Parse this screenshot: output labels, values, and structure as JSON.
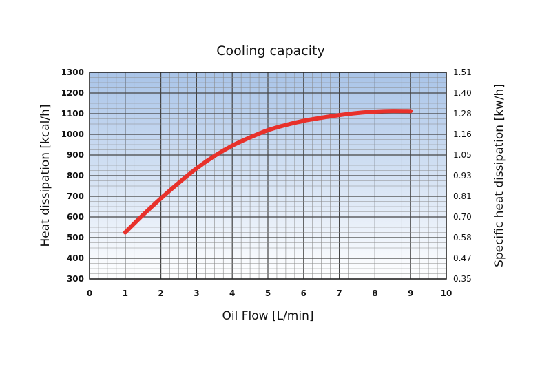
{
  "chart_data": {
    "type": "line",
    "title": "Cooling capacity",
    "xlabel": "Oil Flow [L/min]",
    "ylabel": "Heat dissipation [kcal/h]",
    "y2label": "Specific heat dissipation [kw/h]",
    "xlim": [
      0,
      10
    ],
    "ylim": [
      300,
      1300
    ],
    "x_ticks": [
      "0",
      "1",
      "2",
      "3",
      "4",
      "5",
      "6",
      "7",
      "8",
      "9",
      "10"
    ],
    "y_ticks": [
      "300",
      "400",
      "500",
      "600",
      "700",
      "800",
      "900",
      "1000",
      "1100",
      "1200",
      "1300"
    ],
    "y2_ticks": [
      "0.35",
      "0.47",
      "0.58",
      "0.70",
      "0.81",
      "0.93",
      "1.05",
      "1.16",
      "1.28",
      "1.40",
      "1.51"
    ],
    "grid": true,
    "series_color": "#e8312b",
    "background_gradient": [
      "#a9c4e8",
      "#ffffff"
    ],
    "series": [
      {
        "x": [
          1,
          1.5,
          2,
          2.5,
          3,
          3.5,
          4,
          4.5,
          5,
          5.5,
          6,
          6.5,
          7,
          7.5,
          8,
          8.5,
          9
        ],
        "values": [
          525,
          610,
          690,
          765,
          835,
          895,
          945,
          985,
          1020,
          1045,
          1065,
          1080,
          1093,
          1103,
          1110,
          1113,
          1112
        ]
      }
    ]
  }
}
